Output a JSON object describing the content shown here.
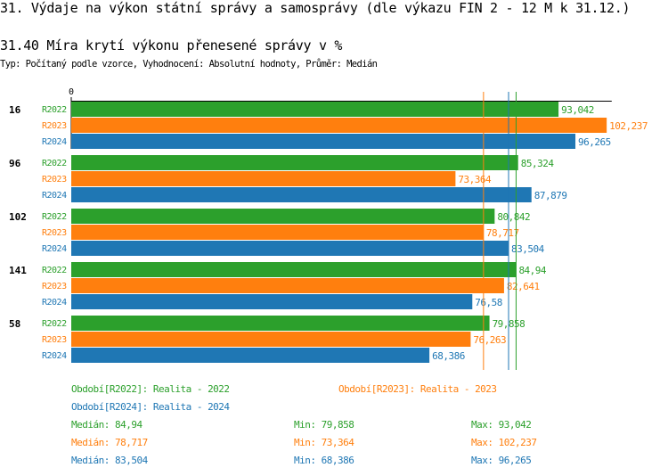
{
  "title": "31. Výdaje na výkon státní správy a samosprávy (dle výkazu FIN 2 - 12 M k 31.12.)",
  "subtitle": "31.40 Míra krytí výkonu přenesené správy v %",
  "meta": "Typ: Počítaný podle vzorce, Vyhodnocení: Absolutní hodnoty, Průměr: Medián",
  "chart_data": {
    "type": "bar",
    "orientation": "horizontal",
    "axis_zero_label": "0",
    "xlim": [
      0,
      103.2
    ],
    "categories": [
      "16",
      "96",
      "102",
      "141",
      "58"
    ],
    "series": [
      {
        "name": "R2022",
        "color": "#2ca02c",
        "values": [
          93.042,
          85.324,
          80.842,
          84.94,
          79.858
        ],
        "labels": [
          "93,042",
          "85,324",
          "80,842",
          "84,94",
          "79,858"
        ]
      },
      {
        "name": "R2023",
        "color": "#ff7f0e",
        "values": [
          102.237,
          73.364,
          78.717,
          82.641,
          76.263
        ],
        "labels": [
          "102,237",
          "73,364",
          "78,717",
          "82,641",
          "76,263"
        ]
      },
      {
        "name": "R2024",
        "color": "#1f77b4",
        "values": [
          96.265,
          87.879,
          83.504,
          76.58,
          68.386
        ],
        "labels": [
          "96,265",
          "87,879",
          "83,504",
          "76,58",
          "68,386"
        ]
      }
    ],
    "median_lines": [
      84.94,
      78.717,
      83.504
    ],
    "legend": [
      "Období[R2022]: Realita - 2022",
      "Období[R2023]: Realita - 2023",
      "Období[R2024]: Realita - 2024"
    ],
    "stats": [
      {
        "median": "Medián: 84,94",
        "min": "Min: 79,858",
        "max": "Max: 93,042"
      },
      {
        "median": "Medián: 78,717",
        "min": "Min: 73,364",
        "max": "Max: 102,237"
      },
      {
        "median": "Medián: 83,504",
        "min": "Min: 68,386",
        "max": "Max: 96,265"
      }
    ]
  }
}
